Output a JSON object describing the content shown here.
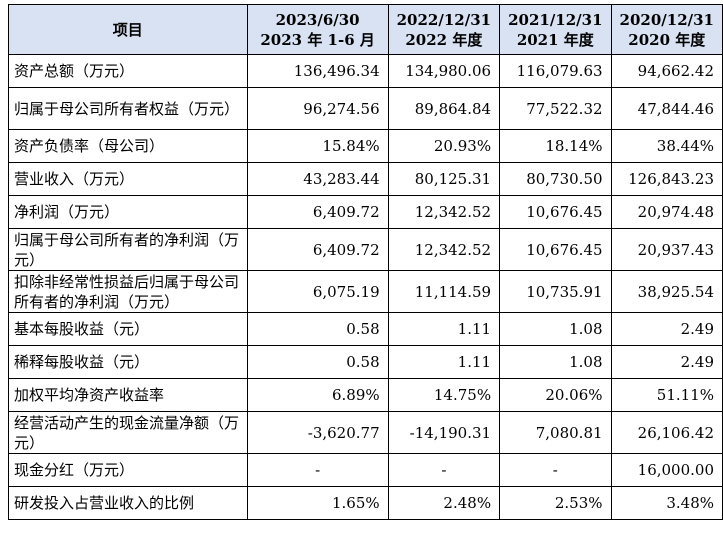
{
  "header": {
    "item": "项目",
    "periods": [
      {
        "line1": "2023/6/30",
        "line2": "2023 年 1-6 月"
      },
      {
        "line1": "2022/12/31",
        "line2": "2022 年度"
      },
      {
        "line1": "2021/12/31",
        "line2": "2021 年度"
      },
      {
        "line1": "2020/12/31",
        "line2": "2020 年度"
      }
    ]
  },
  "rows": [
    {
      "label": "资产总额（万元）",
      "values": [
        "136,496.34",
        "134,980.06",
        "116,079.63",
        "94,662.42"
      ]
    },
    {
      "label": "归属于母公司所有者权益（万元）",
      "values": [
        "96,274.56",
        "89,864.84",
        "77,522.32",
        "47,844.46"
      ]
    },
    {
      "label": "资产负债率（母公司）",
      "values": [
        "15.84%",
        "20.93%",
        "18.14%",
        "38.44%"
      ]
    },
    {
      "label": "营业收入（万元）",
      "values": [
        "43,283.44",
        "80,125.31",
        "80,730.50",
        "126,843.23"
      ]
    },
    {
      "label": "净利润（万元）",
      "values": [
        "6,409.72",
        "12,342.52",
        "10,676.45",
        "20,974.48"
      ]
    },
    {
      "label": "归属于母公司所有者的净利润（万元）",
      "values": [
        "6,409.72",
        "12,342.52",
        "10,676.45",
        "20,937.43"
      ]
    },
    {
      "label": "扣除非经常性损益后归属于母公司所有者的净利润（万元）",
      "values": [
        "6,075.19",
        "11,114.59",
        "10,735.91",
        "38,925.54"
      ]
    },
    {
      "label": "基本每股收益（元）",
      "values": [
        "0.58",
        "1.11",
        "1.08",
        "2.49"
      ]
    },
    {
      "label": "稀释每股收益（元）",
      "values": [
        "0.58",
        "1.11",
        "1.08",
        "2.49"
      ]
    },
    {
      "label": "加权平均净资产收益率",
      "values": [
        "6.89%",
        "14.75%",
        "20.06%",
        "51.11%"
      ]
    },
    {
      "label": "经营活动产生的现金流量净额（万元）",
      "values": [
        "-3,620.77",
        "-14,190.31",
        "7,080.81",
        "26,106.42"
      ]
    },
    {
      "label": "现金分红（万元）",
      "values": [
        "-",
        "-",
        "-",
        "16,000.00"
      ]
    },
    {
      "label": "研发投入占营业收入的比例",
      "values": [
        "1.65%",
        "2.48%",
        "2.53%",
        "3.48%"
      ]
    }
  ]
}
